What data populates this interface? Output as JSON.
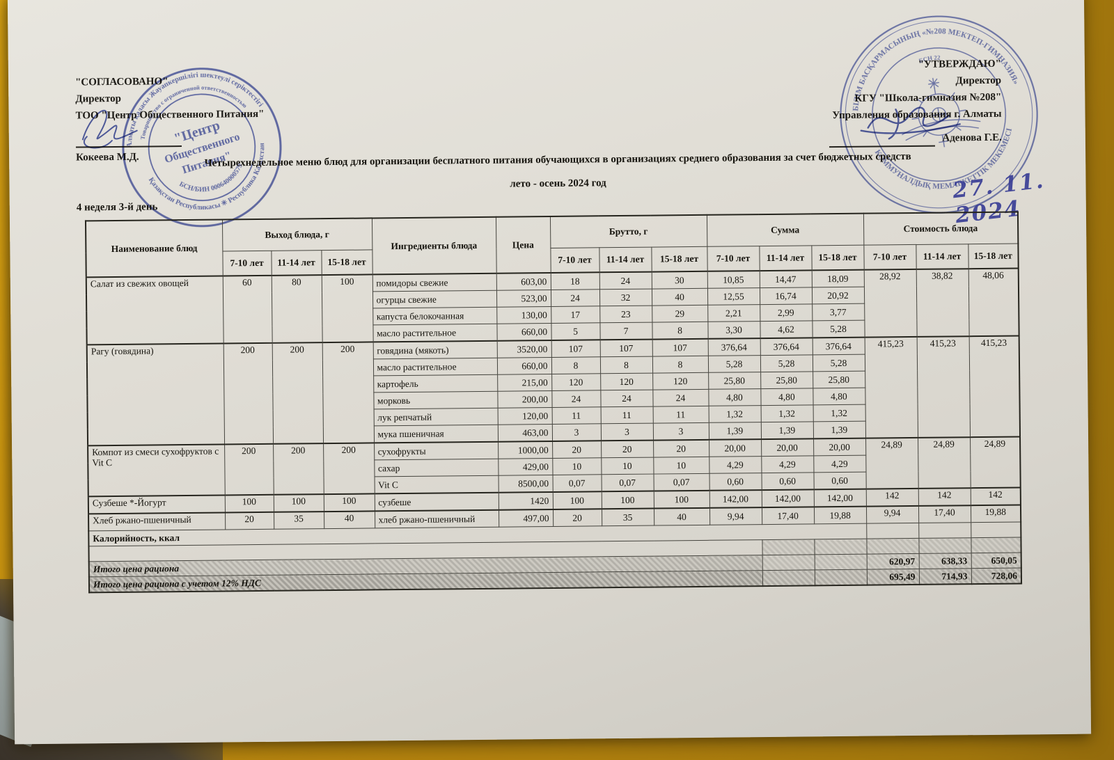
{
  "approved_block": {
    "title": "\"СОГЛАСОВАНО\"",
    "role": "Директор",
    "org": "ТОО \"Центр Общественного Питания\"",
    "signer": "Кокеева М.Д."
  },
  "approval_block": {
    "title": "\"УТВЕРЖДАЮ\"",
    "role": "Директор",
    "org": "КГУ  \"Школа-гимназия №208\"",
    "org2": "Управления образования г. Алматы",
    "signer": "Аденова Г.Е.",
    "handwritten_date": "27. 11. 2024"
  },
  "document": {
    "title": "Четырехнедельное меню блюд для организации бесплатного питания обучающихся в организациях среднего образования за счет бюджетных средств",
    "subtitle": "лето - осень 2024 год",
    "week_day": "4 неделя 3-й день"
  },
  "stamps": {
    "left": {
      "outer_top": "Алматы қаласы Жауапкершілігі шектеулі серіктестігі",
      "outer_bottom": "Қазақстан Республикасы ✳ Республика Казахстан",
      "middle_top": "Товарищество с ограниченной ответственностью",
      "inner_bottom": "БСН/БИН 000640000579",
      "center_line1": "\"Центр",
      "center_line2": "Общественного",
      "center_line3": "Питания\""
    },
    "right": {
      "outer_top": "БІЛІМ БАСҚАРМАСЫНЫҢ «№208 МЕКТЕП-ГИМНАЗИЯ»",
      "outer_bottom": "КОММУНАЛДЫҚ МЕМЛЕКЕТТІК МЕКЕМЕСІ",
      "inner_top": "БСН 22"
    }
  },
  "table": {
    "columns": {
      "name": "Наименование блюд",
      "output_group": "Выход блюда, г",
      "ingredients": "Ингредиенты блюда",
      "price": "Цена",
      "brutto_group": "Брутто, г",
      "sum_group": "Сумма",
      "cost_group": "Стоимость блюда"
    },
    "age_groups": [
      "7-10 лет",
      "11-14 лет",
      "15-18 лет"
    ],
    "dishes": [
      {
        "name": "Салат из свежих овощей",
        "output": [
          "60",
          "80",
          "100"
        ],
        "cost": [
          "28,92",
          "38,82",
          "48,06"
        ],
        "ingredients": [
          {
            "name": "помидоры свежие",
            "price": "603,00",
            "brutto": [
              "18",
              "24",
              "30"
            ],
            "sum": [
              "10,85",
              "14,47",
              "18,09"
            ]
          },
          {
            "name": "огурцы свежие",
            "price": "523,00",
            "brutto": [
              "24",
              "32",
              "40"
            ],
            "sum": [
              "12,55",
              "16,74",
              "20,92"
            ]
          },
          {
            "name": "капуста белокочанная",
            "price": "130,00",
            "brutto": [
              "17",
              "23",
              "29"
            ],
            "sum": [
              "2,21",
              "2,99",
              "3,77"
            ]
          },
          {
            "name": "масло растительное",
            "price": "660,00",
            "brutto": [
              "5",
              "7",
              "8"
            ],
            "sum": [
              "3,30",
              "4,62",
              "5,28"
            ]
          }
        ]
      },
      {
        "name": "Рагу (говядина)",
        "output": [
          "200",
          "200",
          "200"
        ],
        "cost": [
          "415,23",
          "415,23",
          "415,23"
        ],
        "ingredients": [
          {
            "name": "говядина (мякоть)",
            "price": "3520,00",
            "brutto": [
              "107",
              "107",
              "107"
            ],
            "sum": [
              "376,64",
              "376,64",
              "376,64"
            ]
          },
          {
            "name": "масло растительное",
            "price": "660,00",
            "brutto": [
              "8",
              "8",
              "8"
            ],
            "sum": [
              "5,28",
              "5,28",
              "5,28"
            ]
          },
          {
            "name": "картофель",
            "price": "215,00",
            "brutto": [
              "120",
              "120",
              "120"
            ],
            "sum": [
              "25,80",
              "25,80",
              "25,80"
            ]
          },
          {
            "name": "морковь",
            "price": "200,00",
            "brutto": [
              "24",
              "24",
              "24"
            ],
            "sum": [
              "4,80",
              "4,80",
              "4,80"
            ]
          },
          {
            "name": "лук репчатый",
            "price": "120,00",
            "brutto": [
              "11",
              "11",
              "11"
            ],
            "sum": [
              "1,32",
              "1,32",
              "1,32"
            ]
          },
          {
            "name": "мука пшеничная",
            "price": "463,00",
            "brutto": [
              "3",
              "3",
              "3"
            ],
            "sum": [
              "1,39",
              "1,39",
              "1,39"
            ]
          }
        ]
      },
      {
        "name": "Компот из смеси сухофруктов с Vit C",
        "output": [
          "200",
          "200",
          "200"
        ],
        "cost": [
          "24,89",
          "24,89",
          "24,89"
        ],
        "ingredients": [
          {
            "name": "сухофрукты",
            "price": "1000,00",
            "brutto": [
              "20",
              "20",
              "20"
            ],
            "sum": [
              "20,00",
              "20,00",
              "20,00"
            ]
          },
          {
            "name": "сахар",
            "price": "429,00",
            "brutto": [
              "10",
              "10",
              "10"
            ],
            "sum": [
              "4,29",
              "4,29",
              "4,29"
            ]
          },
          {
            "name": "Vit C",
            "price": "8500,00",
            "brutto": [
              "0,07",
              "0,07",
              "0,07"
            ],
            "sum": [
              "0,60",
              "0,60",
              "0,60"
            ]
          }
        ]
      },
      {
        "name": "Сузбеше *-Йогурт",
        "output": [
          "100",
          "100",
          "100"
        ],
        "cost": [
          "142",
          "142",
          "142"
        ],
        "ingredients": [
          {
            "name": "сузбеше",
            "price": "1420",
            "brutto": [
              "100",
              "100",
              "100"
            ],
            "sum": [
              "142,00",
              "142,00",
              "142,00"
            ]
          }
        ]
      },
      {
        "name": "Хлеб ржано-пшеничный",
        "output": [
          "20",
          "35",
          "40"
        ],
        "cost": [
          "9,94",
          "17,40",
          "19,88"
        ],
        "ingredients": [
          {
            "name": "хлеб ржано-пшеничный",
            "price": "497,00",
            "brutto": [
              "20",
              "35",
              "40"
            ],
            "sum": [
              "9,94",
              "17,40",
              "19,88"
            ]
          }
        ]
      }
    ],
    "footer_rows": [
      {
        "label": "Калорийность, ккал",
        "values": [
          "",
          "",
          ""
        ]
      },
      {
        "label": "",
        "values": [
          "",
          "",
          ""
        ]
      },
      {
        "label": "Итого цена рациона",
        "values": [
          "620,97",
          "638,33",
          "650,05"
        ]
      },
      {
        "label": "Итого цена рациона с учетом 12% НДС",
        "values": [
          "695,49",
          "714,93",
          "728,06"
        ]
      }
    ]
  }
}
